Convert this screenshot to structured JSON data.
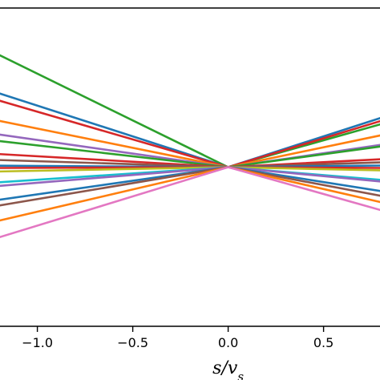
{
  "chart_data": {
    "type": "line",
    "title": "",
    "xlabel": "s/v",
    "xlabel_sub": "s",
    "ylabel": "",
    "xlim": [
      -1.2,
      0.8
    ],
    "ylim": [
      -1.0,
      1.0
    ],
    "xticks": [
      -1.0,
      -0.5,
      0.0,
      0.5
    ],
    "xtick_labels": [
      "−1.0",
      "−0.5",
      "0.0",
      "0.5"
    ],
    "grid": false,
    "legend": "none",
    "pivot": [
      0.0,
      0.0
    ],
    "series": [
      {
        "color": "#2ca02c",
        "x": [
          -1.2,
          0.0,
          0.8
        ],
        "y": [
          0.705,
          0.0,
          0.27
        ]
      },
      {
        "color": "#1f77b4",
        "x": [
          -1.2,
          0.0,
          0.8
        ],
        "y": [
          0.464,
          0.0,
          0.31
        ]
      },
      {
        "color": "#d62728",
        "x": [
          -1.2,
          0.0,
          0.8
        ],
        "y": [
          0.418,
          0.0,
          0.29
        ]
      },
      {
        "color": "#ff7f0e",
        "x": [
          -1.2,
          0.0,
          0.8
        ],
        "y": [
          0.291,
          0.0,
          0.2
        ]
      },
      {
        "color": "#9467bd",
        "x": [
          -1.2,
          0.0,
          0.8
        ],
        "y": [
          0.205,
          0.0,
          0.14
        ]
      },
      {
        "color": "#2ca02c",
        "x": [
          -1.2,
          0.0,
          0.8
        ],
        "y": [
          0.164,
          0.0,
          0.13
        ]
      },
      {
        "color": "#d62728",
        "x": [
          -1.2,
          0.0,
          0.8
        ],
        "y": [
          0.082,
          0.0,
          0.05
        ]
      },
      {
        "color": "#8c564b",
        "x": [
          -1.2,
          0.0,
          0.8
        ],
        "y": [
          0.045,
          0.0,
          0.03
        ]
      },
      {
        "color": "#1f77b4",
        "x": [
          -1.2,
          0.0,
          0.8
        ],
        "y": [
          0.009,
          0.0,
          0.01
        ]
      },
      {
        "color": "#d62728",
        "x": [
          -1.2,
          0.0,
          0.8
        ],
        "y": [
          -0.005,
          0.0,
          -0.005
        ]
      },
      {
        "color": "#bcbd22",
        "x": [
          -1.2,
          0.0,
          0.8
        ],
        "y": [
          -0.027,
          0.0,
          -0.02
        ]
      },
      {
        "color": "#17becf",
        "x": [
          -1.2,
          0.0,
          0.8
        ],
        "y": [
          -0.095,
          0.0,
          -0.08
        ]
      },
      {
        "color": "#9467bd",
        "x": [
          -1.2,
          0.0,
          0.8
        ],
        "y": [
          -0.118,
          0.0,
          -0.09
        ]
      },
      {
        "color": "#1f77b4",
        "x": [
          -1.2,
          0.0,
          0.8
        ],
        "y": [
          -0.205,
          0.0,
          -0.15
        ]
      },
      {
        "color": "#8c564b",
        "x": [
          -1.2,
          0.0,
          0.8
        ],
        "y": [
          -0.241,
          0.0,
          -0.18
        ]
      },
      {
        "color": "#ff7f0e",
        "x": [
          -1.2,
          0.0,
          0.8
        ],
        "y": [
          -0.336,
          0.0,
          -0.22
        ]
      },
      {
        "color": "#e377c2",
        "x": [
          -1.2,
          0.0,
          0.8
        ],
        "y": [
          -0.441,
          0.0,
          -0.27
        ]
      }
    ]
  }
}
